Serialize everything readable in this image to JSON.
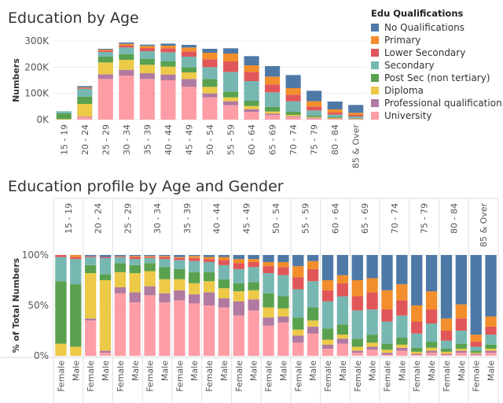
{
  "titles": {
    "top": "Education by Age",
    "bottom": "Education profile by Age and Gender"
  },
  "legend": {
    "title": "Edu Qualifications",
    "items": [
      {
        "label": "No Qualifications",
        "color": "#4e79a7"
      },
      {
        "label": "Primary",
        "color": "#f28e2b"
      },
      {
        "label": "Lower Secondary",
        "color": "#e15759"
      },
      {
        "label": "Secondary",
        "color": "#76b7b2"
      },
      {
        "label": "Post Sec (non tertiary)",
        "color": "#59a14f"
      },
      {
        "label": "Diploma",
        "color": "#edc948"
      },
      {
        "label": "Professional qualification",
        "color": "#b07aa1"
      },
      {
        "label": "University",
        "color": "#ff9da7"
      }
    ]
  },
  "chart_data": [
    {
      "type": "bar",
      "title": "Education by Age",
      "xlabel": "",
      "ylabel": "Numbers",
      "ylim": [
        0,
        300000
      ],
      "yticks": [
        "0K",
        "100K",
        "200K",
        "300K"
      ],
      "stacked": true,
      "categories": [
        "15 - 19",
        "20 - 24",
        "25 - 29",
        "30 - 34",
        "35 - 39",
        "40 - 44",
        "45 - 49",
        "50 - 54",
        "55 - 59",
        "60 - 64",
        "65 - 69",
        "70 - 74",
        "75 - 79",
        "80 - 84",
        "85 & Over"
      ],
      "series": [
        {
          "name": "University",
          "values": [
            0,
            10000,
            155000,
            168000,
            155000,
            150000,
            125000,
            85000,
            55000,
            30000,
            18000,
            10000,
            5000,
            3000,
            2000
          ]
        },
        {
          "name": "Professional qualification",
          "values": [
            0,
            2000,
            18000,
            22000,
            22000,
            22000,
            30000,
            15000,
            15000,
            10000,
            5000,
            3000,
            2000,
            1000,
            1000
          ]
        },
        {
          "name": "Diploma",
          "values": [
            2000,
            48000,
            45000,
            38000,
            32000,
            30000,
            25000,
            25000,
            15000,
            12000,
            8000,
            5000,
            3000,
            2000,
            1000
          ]
        },
        {
          "name": "Post Sec (non tertiary)",
          "values": [
            22000,
            28000,
            22000,
            22000,
            22000,
            20000,
            20000,
            30000,
            22000,
            20000,
            18000,
            12000,
            5000,
            3000,
            2000
          ]
        },
        {
          "name": "Secondary",
          "values": [
            8000,
            30000,
            18000,
            25000,
            30000,
            35000,
            40000,
            45000,
            75000,
            75000,
            55000,
            40000,
            20000,
            10000,
            6000
          ]
        },
        {
          "name": "Lower Secondary",
          "values": [
            0,
            3000,
            5000,
            8000,
            12000,
            15000,
            20000,
            30000,
            40000,
            35000,
            30000,
            25000,
            15000,
            8000,
            6000
          ]
        },
        {
          "name": "Primary",
          "values": [
            0,
            2000,
            4000,
            6000,
            8000,
            10000,
            15000,
            25000,
            30000,
            25000,
            30000,
            25000,
            20000,
            12000,
            8000
          ]
        },
        {
          "name": "No Qualifications",
          "values": [
            0,
            5000,
            3000,
            5000,
            5000,
            8000,
            10000,
            15000,
            20000,
            35000,
            40000,
            50000,
            40000,
            30000,
            30000
          ]
        }
      ]
    },
    {
      "type": "bar",
      "title": "Education profile by Age and Gender",
      "xlabel": "",
      "ylabel": "% of Total Numbers",
      "ylim": [
        0,
        100
      ],
      "yticks": [
        "0%",
        "50%",
        "100%"
      ],
      "stacked": true,
      "groups": [
        "15 - 19",
        "20 - 24",
        "25 - 29",
        "30 - 34",
        "35 - 39",
        "40 - 44",
        "45 - 49",
        "50 - 54",
        "55 - 59",
        "60 - 64",
        "65 - 69",
        "70 - 74",
        "75 - 79",
        "80 - 84",
        "85 & Over"
      ],
      "genders": [
        "Female",
        "Male"
      ],
      "series_order": [
        "University",
        "Professional qualification",
        "Diploma",
        "Post Sec (non tertiary)",
        "Secondary",
        "Lower Secondary",
        "Primary",
        "No Qualifications"
      ],
      "bars": [
        [
          [
            0,
            0,
            12,
            62,
            24,
            2,
            0,
            0
          ],
          [
            0,
            0,
            9,
            62,
            25,
            2,
            2,
            0
          ]
        ],
        [
          [
            35,
            2,
            45,
            8,
            8,
            1,
            0,
            1
          ],
          [
            3,
            2,
            70,
            6,
            16,
            1,
            0,
            2
          ]
        ],
        [
          [
            62,
            6,
            15,
            9,
            6,
            1,
            0,
            1
          ],
          [
            53,
            10,
            19,
            8,
            6,
            2,
            1,
            1
          ]
        ],
        [
          [
            60,
            9,
            15,
            8,
            5,
            1,
            1,
            1
          ],
          [
            53,
            9,
            14,
            12,
            8,
            2,
            1,
            1
          ]
        ],
        [
          [
            55,
            10,
            11,
            10,
            9,
            2,
            1,
            2
          ],
          [
            52,
            9,
            11,
            11,
            11,
            3,
            2,
            1
          ]
        ],
        [
          [
            50,
            13,
            11,
            9,
            10,
            3,
            2,
            2
          ],
          [
            48,
            9,
            10,
            9,
            14,
            5,
            3,
            2
          ]
        ],
        [
          [
            40,
            14,
            10,
            8,
            14,
            6,
            4,
            4
          ],
          [
            45,
            11,
            9,
            8,
            15,
            5,
            3,
            4
          ]
        ],
        [
          [
            30,
            8,
            10,
            14,
            20,
            7,
            4,
            7
          ],
          [
            33,
            6,
            8,
            12,
            21,
            8,
            5,
            7
          ]
        ],
        [
          [
            13,
            7,
            6,
            12,
            28,
            12,
            11,
            11
          ],
          [
            22,
            7,
            6,
            13,
            26,
            12,
            8,
            6
          ]
        ],
        [
          [
            7,
            4,
            5,
            11,
            27,
            11,
            10,
            25
          ],
          [
            12,
            5,
            4,
            10,
            28,
            13,
            8,
            20
          ]
        ],
        [
          [
            3,
            2,
            4,
            8,
            28,
            14,
            16,
            25
          ],
          [
            6,
            3,
            4,
            8,
            25,
            17,
            14,
            23
          ]
        ],
        [
          [
            1,
            2,
            3,
            6,
            22,
            12,
            19,
            35
          ],
          [
            5,
            3,
            3,
            7,
            22,
            15,
            16,
            29
          ]
        ],
        [
          [
            1,
            1,
            2,
            4,
            14,
            12,
            16,
            50
          ],
          [
            3,
            2,
            3,
            6,
            18,
            14,
            18,
            36
          ]
        ],
        [
          [
            1,
            1,
            2,
            3,
            8,
            10,
            12,
            63
          ],
          [
            3,
            2,
            2,
            5,
            13,
            12,
            14,
            49
          ]
        ],
        [
          [
            1,
            1,
            1,
            2,
            4,
            5,
            7,
            79
          ],
          [
            3,
            2,
            2,
            4,
            10,
            8,
            10,
            61
          ]
        ]
      ]
    }
  ]
}
